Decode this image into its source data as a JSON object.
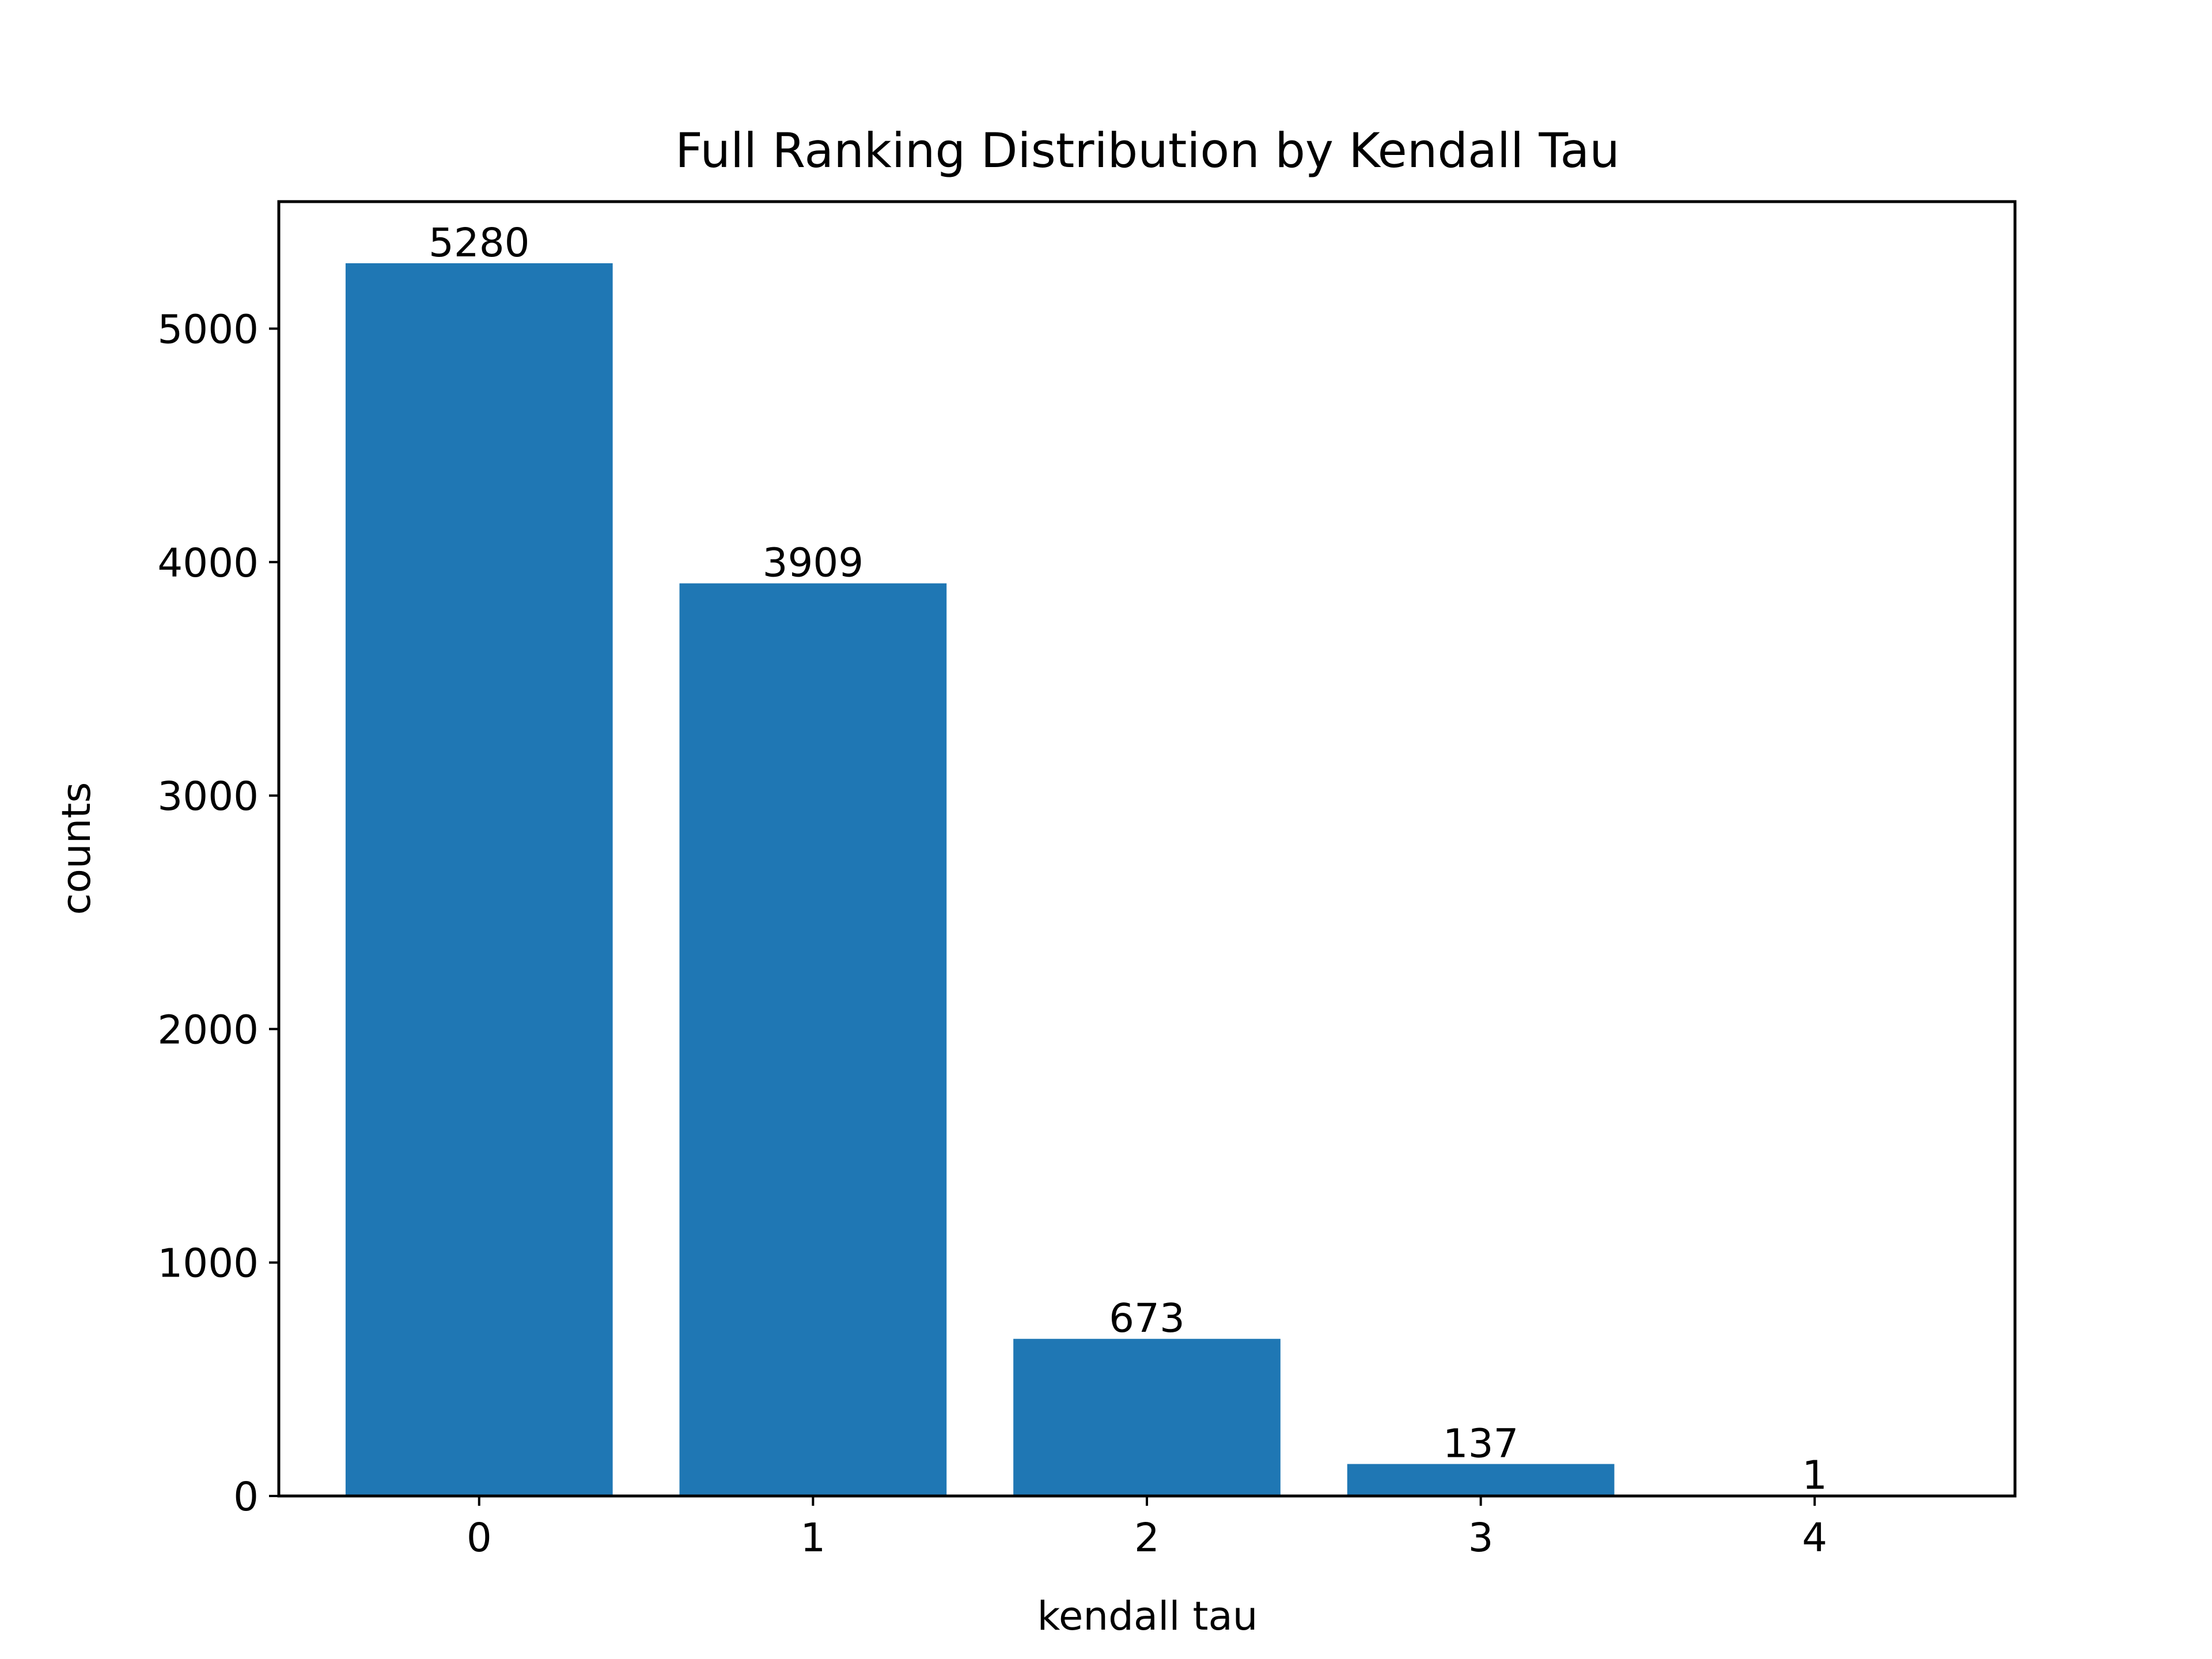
{
  "chart_data": {
    "type": "bar",
    "title": "Full Ranking Distribution by Kendall Tau",
    "xlabel": "kendall tau",
    "ylabel": "counts",
    "categories": [
      "0",
      "1",
      "2",
      "3",
      "4"
    ],
    "values": [
      5280,
      3909,
      673,
      137,
      1
    ],
    "data_labels": [
      "5280",
      "3909",
      "673",
      "137",
      "1"
    ],
    "yticks": [
      0,
      1000,
      2000,
      3000,
      4000,
      5000
    ],
    "ytick_labels": [
      "0",
      "1000",
      "2000",
      "3000",
      "4000",
      "5000"
    ],
    "ylim": [
      0,
      5544
    ],
    "grid": false,
    "bar_color": "#1f77b4"
  }
}
